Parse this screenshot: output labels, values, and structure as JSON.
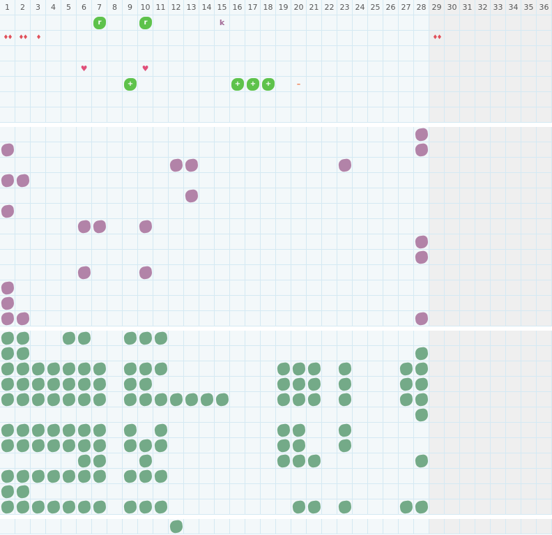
{
  "columns": [
    "1",
    "2",
    "3",
    "4",
    "5",
    "6",
    "7",
    "8",
    "9",
    "10",
    "11",
    "12",
    "13",
    "14",
    "15",
    "16",
    "17",
    "18",
    "19",
    "20",
    "21",
    "22",
    "23",
    "24",
    "25",
    "26",
    "27",
    "28",
    "29",
    "30",
    "31",
    "32",
    "33",
    "34",
    "35",
    "36"
  ],
  "active_columns": 28,
  "colors": {
    "purple_tile": "#b283a8",
    "sage_tile": "#74aa88",
    "bright_tile": "#5ec24b",
    "drop": "#e0505a",
    "heart": "#e0507a",
    "dash": "#f08050",
    "letter": "#a46c98"
  },
  "sections": [
    {
      "rows": 7,
      "cells": [
        {
          "row": 1,
          "col": 7,
          "type": "bright",
          "label": "r"
        },
        {
          "row": 1,
          "col": 10,
          "type": "bright",
          "label": "r"
        },
        {
          "row": 1,
          "col": 15,
          "type": "letter",
          "label": "k"
        },
        {
          "row": 2,
          "col": 1,
          "type": "drops",
          "label": "♦♦"
        },
        {
          "row": 2,
          "col": 2,
          "type": "drops",
          "label": "♦♦"
        },
        {
          "row": 2,
          "col": 3,
          "type": "drops",
          "label": "♦"
        },
        {
          "row": 2,
          "col": 29,
          "type": "drops",
          "label": "♦♦"
        },
        {
          "row": 4,
          "col": 6,
          "type": "heart",
          "label": "♥"
        },
        {
          "row": 4,
          "col": 10,
          "type": "heart",
          "label": "♥"
        },
        {
          "row": 5,
          "col": 9,
          "type": "bright",
          "label": "+"
        },
        {
          "row": 5,
          "col": 16,
          "type": "bright",
          "label": "+"
        },
        {
          "row": 5,
          "col": 17,
          "type": "bright",
          "label": "+"
        },
        {
          "row": 5,
          "col": 18,
          "type": "bright",
          "label": "+"
        },
        {
          "row": 5,
          "col": 20,
          "type": "dash",
          "label": "–"
        }
      ]
    },
    {
      "rows": 13,
      "tile": "purple",
      "tiles": [
        [
          28
        ],
        [
          1,
          28
        ],
        [
          12,
          13,
          23
        ],
        [
          1,
          2
        ],
        [
          13
        ],
        [
          1
        ],
        [
          6,
          7,
          10
        ],
        [
          28
        ],
        [
          28
        ],
        [
          6,
          10
        ],
        [
          1
        ],
        [
          1
        ],
        [
          1,
          2,
          28
        ]
      ]
    },
    {
      "rows": 12,
      "tile": "sage",
      "tiles": [
        [
          1,
          2,
          5,
          6,
          9,
          10,
          11
        ],
        [
          1,
          2,
          28
        ],
        [
          1,
          2,
          3,
          4,
          5,
          6,
          7,
          9,
          10,
          11,
          19,
          20,
          21,
          23,
          27,
          28
        ],
        [
          1,
          2,
          3,
          4,
          5,
          6,
          7,
          9,
          10,
          19,
          20,
          21,
          23,
          27,
          28
        ],
        [
          1,
          2,
          3,
          4,
          5,
          6,
          7,
          9,
          10,
          11,
          12,
          13,
          14,
          15,
          19,
          20,
          21,
          23,
          27,
          28
        ],
        [
          28
        ],
        [
          1,
          2,
          3,
          4,
          5,
          6,
          7,
          9,
          11,
          19,
          20,
          23
        ],
        [
          1,
          2,
          3,
          4,
          5,
          6,
          7,
          9,
          10,
          11,
          19,
          20,
          23
        ],
        [
          6,
          7,
          10,
          19,
          20,
          21,
          28
        ],
        [
          1,
          2,
          3,
          4,
          5,
          6,
          7,
          9,
          10,
          11
        ],
        [
          1,
          2
        ],
        [
          1,
          2,
          3,
          4,
          5,
          6,
          7,
          9,
          10,
          11,
          20,
          21,
          23,
          27,
          28
        ]
      ]
    },
    {
      "rows": 1,
      "tile": "sage",
      "tiles": [
        [
          12
        ]
      ]
    }
  ]
}
